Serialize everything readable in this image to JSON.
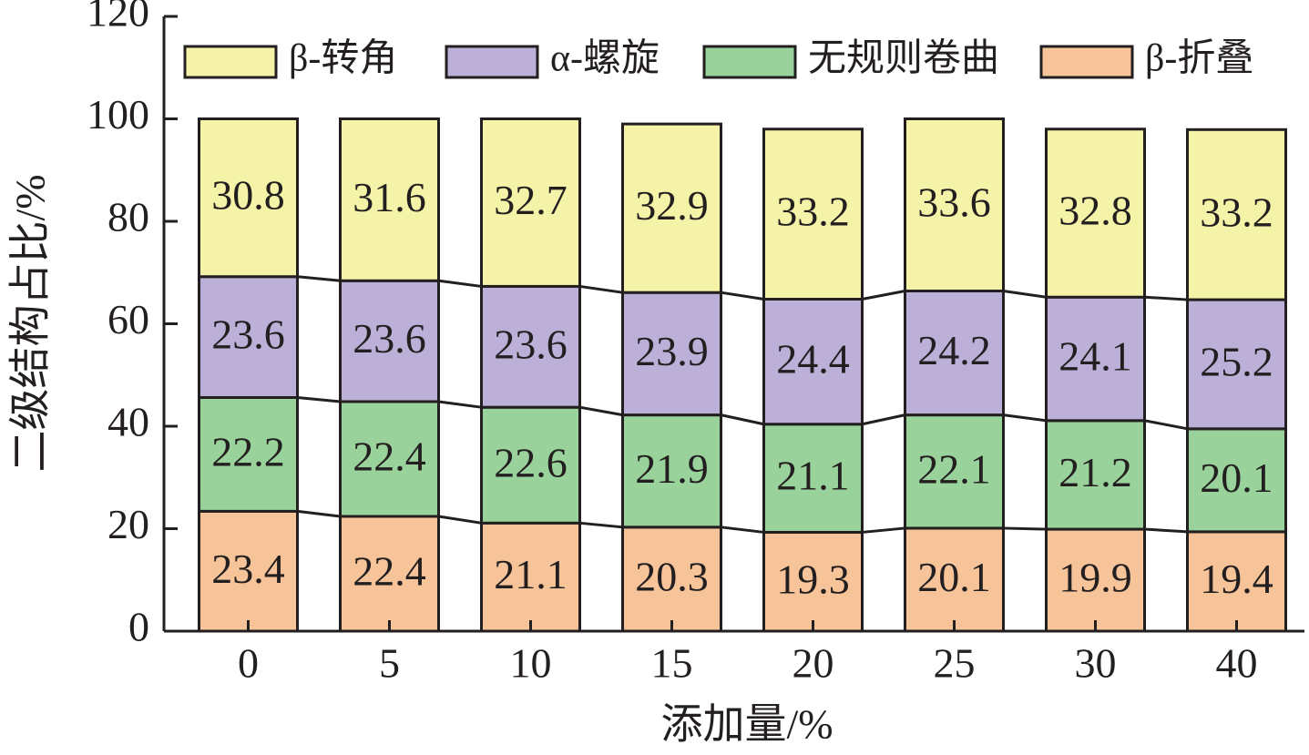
{
  "chart_data": {
    "type": "stacked-bar",
    "x_label": "添加量/%",
    "y_label": "二级结构占比/%",
    "categories": [
      "0",
      "5",
      "10",
      "15",
      "20",
      "25",
      "30",
      "40"
    ],
    "series": [
      {
        "name": "β-转角",
        "color": "#f5f3a8",
        "values": [
          30.8,
          31.6,
          32.7,
          32.9,
          33.2,
          33.6,
          32.8,
          33.2
        ]
      },
      {
        "name": "α-螺旋",
        "color": "#bdb0d8",
        "values": [
          23.6,
          23.6,
          23.6,
          23.9,
          24.4,
          24.2,
          24.1,
          25.2
        ]
      },
      {
        "name": "无规则卷曲",
        "color": "#99d39b",
        "values": [
          22.2,
          22.4,
          22.6,
          21.9,
          21.1,
          22.1,
          21.2,
          20.1
        ]
      },
      {
        "name": "β-折叠",
        "color": "#f6c498",
        "values": [
          23.4,
          22.4,
          21.1,
          20.3,
          19.3,
          20.1,
          19.9,
          19.4
        ]
      }
    ],
    "ylim": [
      0,
      120
    ],
    "yticks": [
      0,
      20,
      40,
      60,
      80,
      100,
      120
    ],
    "legend": "top"
  }
}
